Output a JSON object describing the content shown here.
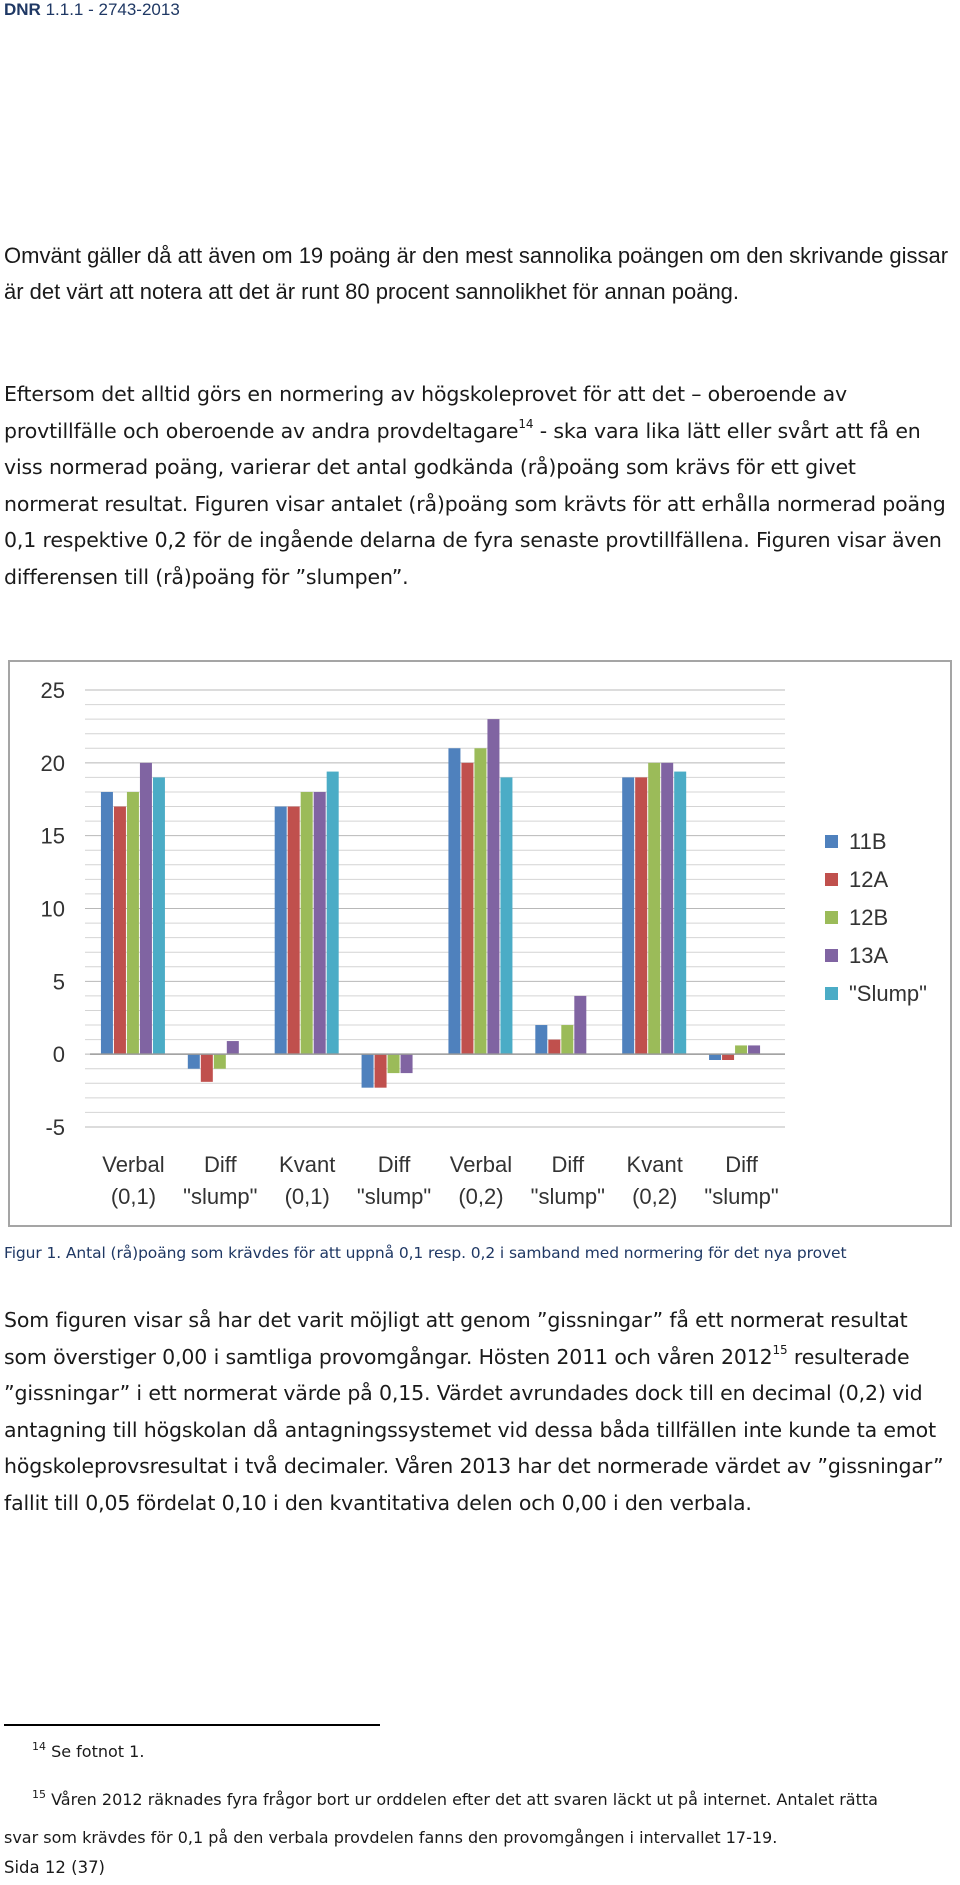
{
  "header": {
    "doc_prefix": "DNR",
    "doc_number": " 1.1.1 - 2743-2013"
  },
  "paragraph1": "Omvänt gäller då att även om 19 poäng är den mest sannolika poängen om den skrivande gissar är det värt att notera att det är runt 80 procent sannolikhet för annan poäng.",
  "paragraph2": {
    "part1": "Eftersom det alltid görs en normering av högskoleprovet för att det – oberoende av provtillfälle och oberoende av andra provdeltagare",
    "footnote_ref": "14",
    "part2": " - ska vara lika lätt eller svårt att få en viss normerad poäng, varierar det antal godkända (rå)poäng som krävs för ett givet normerat resultat. Figuren visar antalet (rå)poäng som krävts för att erhålla normerad poäng 0,1 respektive 0,2 för de ingående delarna de fyra senaste provtillfällena. Figuren visar även differensen till (rå)poäng för ”slumpen”."
  },
  "chart_data": {
    "type": "bar",
    "categories": [
      [
        "Verbal",
        "(0,1)"
      ],
      [
        "Diff",
        "\"slump\""
      ],
      [
        "Kvant",
        "(0,1)"
      ],
      [
        "Diff",
        "\"slump\""
      ],
      [
        "Verbal",
        "(0,2)"
      ],
      [
        "Diff",
        "\"slump\""
      ],
      [
        "Kvant",
        "(0,2)"
      ],
      [
        "Diff",
        "\"slump\""
      ]
    ],
    "series": [
      {
        "name": "11B",
        "color": "#4f81bd",
        "values": [
          18,
          -1,
          17,
          -2.3,
          21,
          2,
          19,
          -0.4
        ]
      },
      {
        "name": "12A",
        "color": "#c0504d",
        "values": [
          17,
          -1.9,
          17,
          -2.3,
          20,
          1,
          19,
          -0.4
        ]
      },
      {
        "name": "12B",
        "color": "#9bbb59",
        "values": [
          18,
          -1,
          18,
          -1.3,
          21,
          2,
          20,
          0.6
        ]
      },
      {
        "name": "13A",
        "color": "#8064a2",
        "values": [
          20,
          0.9,
          18,
          -1.3,
          23,
          4,
          20,
          0.6
        ]
      },
      {
        "name": "\"Slump\"",
        "color": "#4bacc6",
        "values": [
          19,
          0,
          19.4,
          0,
          19,
          0,
          19.4,
          0
        ]
      }
    ],
    "ylim": [
      -5,
      25
    ],
    "yticks": [
      "25",
      "20",
      "15",
      "10",
      "5",
      "0",
      "-5"
    ],
    "ytick_values": [
      25,
      20,
      15,
      10,
      5,
      0,
      -5
    ],
    "grid": true,
    "legend": "right"
  },
  "caption": "Figur 1. Antal (rå)poäng som krävdes för att uppnå 0,1 resp. 0,2 i samband med normering för det nya provet",
  "paragraph3": {
    "part1": "Som figuren visar så har det varit möjligt att genom ”gissningar” få ett normerat resultat som överstiger 0,00 i samtliga provomgångar. Hösten 2011 och våren 2012",
    "footnote_ref": "15",
    "part2": " resulterade ”gissningar” i ett normerat värde på 0,15. Värdet avrundades dock till en decimal (0,2) vid antagning till högskolan då antagningssystemet vid dessa båda tillfällen inte kunde ta emot högskoleprovsresultat i två decimaler. Våren 2013 har det normerade värdet av ”gissningar” fallit till 0,05 fördelat 0,10 i den kvantitativa delen och 0,00 i den verbala."
  },
  "footnotes": [
    {
      "ref": "14",
      "text": " Se fotnot 1."
    },
    {
      "ref": "15",
      "text": " Våren 2012 räknades fyra frågor bort ur orddelen efter det att svaren läckt ut på internet. Antalet rätta svar som krävdes för 0,1 på den verbala provdelen fanns den provomgången i intervallet 17-19."
    }
  ],
  "footer": "Sida 12 (37)"
}
